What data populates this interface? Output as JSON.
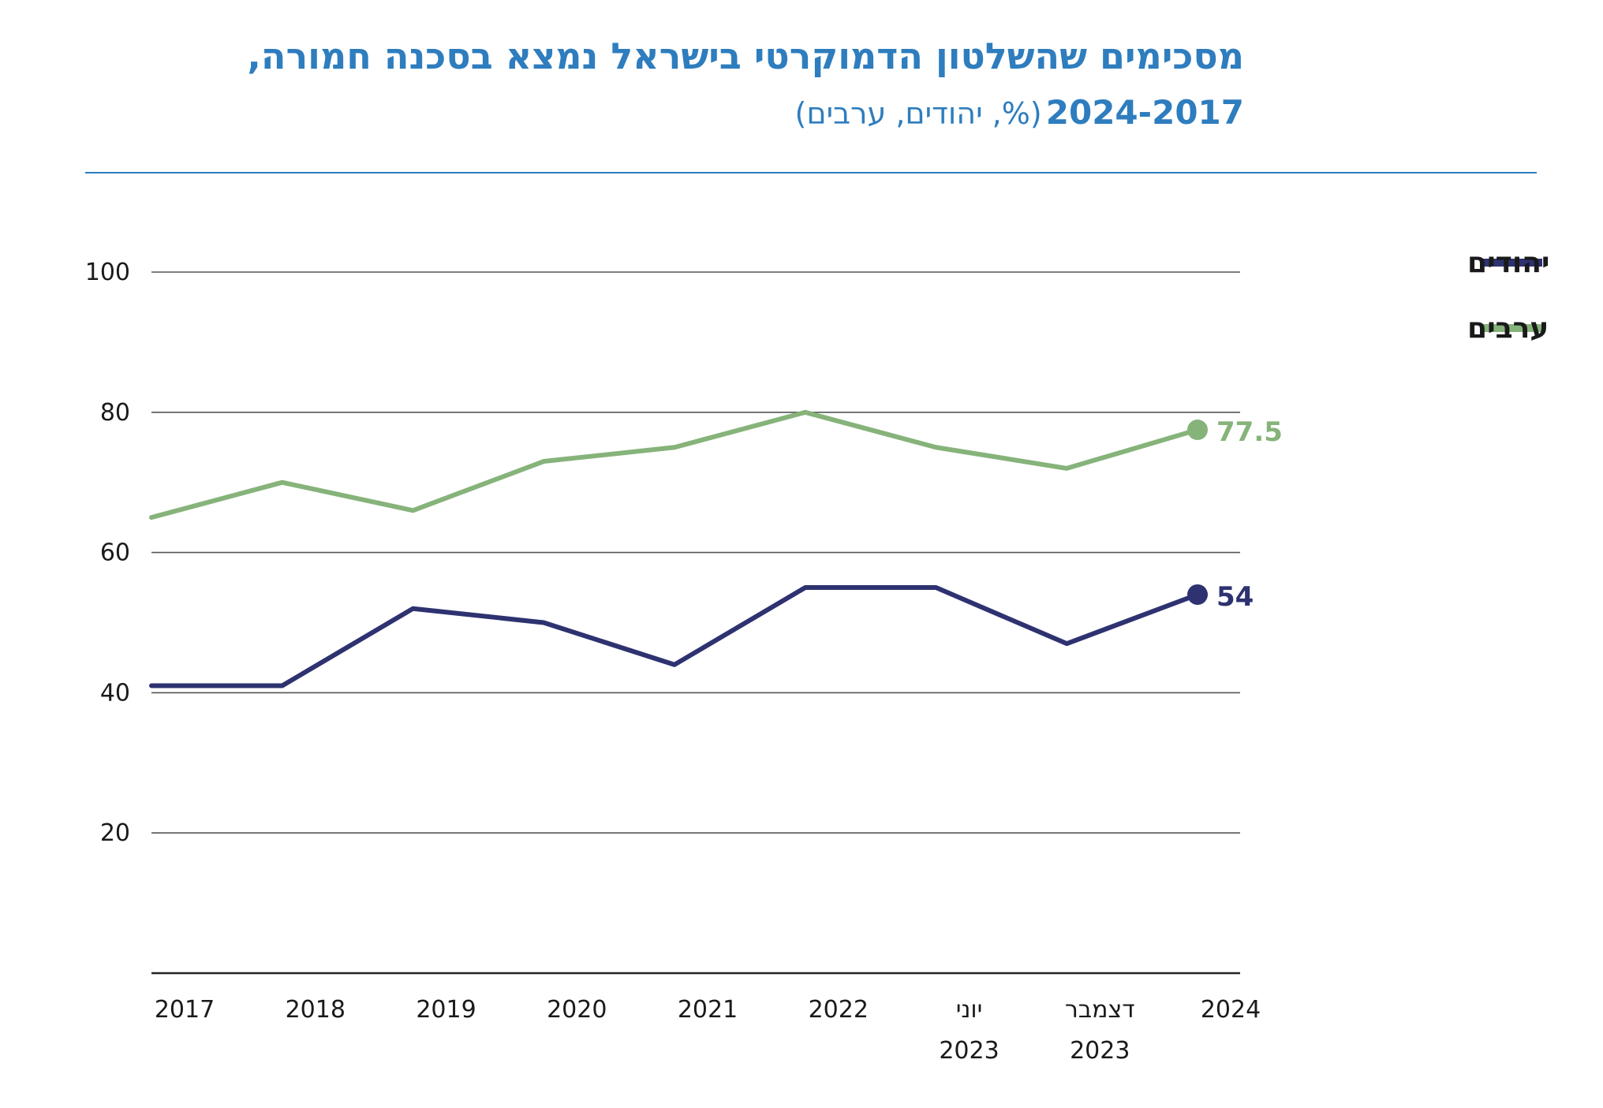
{
  "title": "מסכימים שהשלטון הדמוקרטי בישראל נמצא בסכנה חמורה,",
  "subtitle_years": "2024-2017",
  "subtitle_unit": "(%, יהודים, ערבים)",
  "chart_data": {
    "type": "line",
    "categories": [
      [
        "2017"
      ],
      [
        "2018"
      ],
      [
        "2019"
      ],
      [
        "2020"
      ],
      [
        "2021"
      ],
      [
        "2022"
      ],
      [
        "יוני",
        "2023"
      ],
      [
        "דצמבר",
        "2023"
      ],
      [
        "2024"
      ]
    ],
    "series": [
      {
        "name": "יהודים",
        "color": "#2e3270",
        "values": [
          41,
          41,
          52,
          50,
          44,
          55,
          55,
          47,
          54
        ],
        "end_label": "54"
      },
      {
        "name": "ערבים",
        "color": "#86b37a",
        "values": [
          65,
          70,
          66,
          73,
          75,
          80,
          75,
          72,
          77.5
        ],
        "end_label": "77.5"
      }
    ],
    "y_ticks": [
      "20",
      "40",
      "60",
      "80",
      "100"
    ],
    "ylim": [
      0,
      100
    ],
    "grid": true,
    "legend_position": "top-right"
  }
}
